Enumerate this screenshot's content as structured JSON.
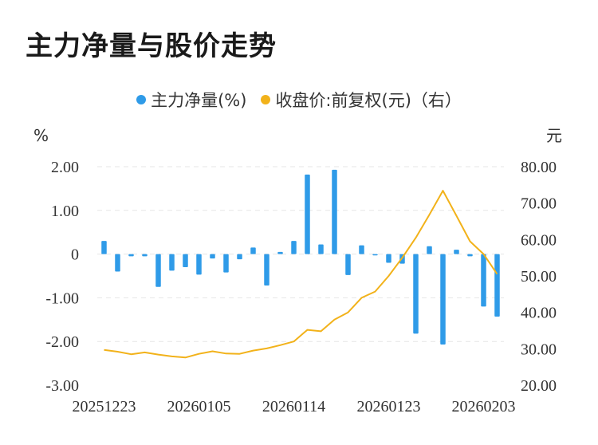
{
  "title": "主力净量与股价走势",
  "legend": [
    {
      "label": "主力净量(%)",
      "color": "#2f9be8"
    },
    {
      "label": "收盘价:前复权(元)（右）",
      "color": "#f2b21a"
    }
  ],
  "chart_data": {
    "type": "bar+line",
    "left_axis_unit": "%",
    "right_axis_unit": "元",
    "left_ticks": [
      "2.00",
      "1.00",
      "0",
      "-1.00",
      "-2.00",
      "-3.00"
    ],
    "right_ticks": [
      "80.00",
      "70.00",
      "60.00",
      "50.00",
      "40.00",
      "30.00",
      "20.00"
    ],
    "ylim_left": [
      -3,
      2
    ],
    "ylim_right": [
      20,
      80
    ],
    "x_tick_labels": [
      "20251223",
      "20260105",
      "20260114",
      "20260123",
      "20260203"
    ],
    "grid": true,
    "legend_position": "top-center",
    "series": [
      {
        "name": "主力净量(%)",
        "type": "bar",
        "color": "#2f9be8",
        "values": [
          0.3,
          -0.4,
          -0.05,
          -0.05,
          -0.75,
          -0.38,
          -0.3,
          -0.47,
          -0.1,
          -0.42,
          -0.12,
          0.15,
          -0.72,
          0.05,
          0.3,
          1.82,
          0.22,
          1.93,
          -0.48,
          0.2,
          -0.03,
          -0.2,
          -0.22,
          -1.82,
          0.18,
          -2.07,
          0.1,
          -0.05,
          -1.2,
          -1.43
        ]
      },
      {
        "name": "收盘价:前复权(元)（右）",
        "type": "line",
        "color": "#f2b21a",
        "values": [
          29.7,
          29.2,
          28.5,
          29.0,
          28.4,
          27.9,
          27.6,
          28.6,
          29.3,
          28.7,
          28.6,
          29.5,
          30.1,
          31.0,
          32.0,
          35.2,
          34.8,
          38.0,
          40.0,
          44.0,
          45.7,
          50.0,
          55.0,
          60.5,
          66.8,
          73.4,
          66.5,
          59.5,
          56.0,
          50.5
        ]
      }
    ]
  }
}
